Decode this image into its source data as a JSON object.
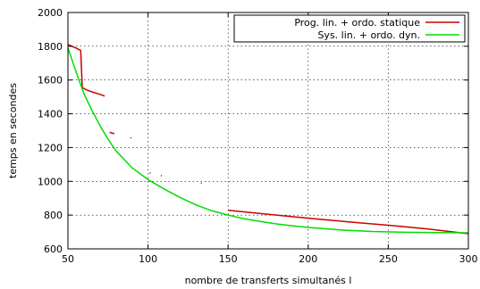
{
  "chart_data": {
    "type": "line",
    "xlabel": "nombre de transferts simultanés l",
    "ylabel": "temps en secondes",
    "xlim": [
      50,
      300
    ],
    "ylim": [
      600,
      2000
    ],
    "x_ticks": [
      50,
      100,
      150,
      200,
      250,
      300
    ],
    "y_ticks": [
      600,
      800,
      1000,
      1200,
      1400,
      1600,
      1800,
      2000
    ],
    "grid": true,
    "legend_position": "top-right",
    "series": [
      {
        "name": "Prog. lin. + ordo. statique",
        "color": "#cc0000",
        "segments": [
          [
            [
              50,
              1810
            ],
            [
              55,
              1790
            ],
            [
              58,
              1775
            ],
            [
              59,
              1545
            ]
          ],
          [
            [
              59,
              1555
            ],
            [
              62,
              1540
            ],
            [
              65,
              1530
            ],
            [
              70,
              1515
            ],
            [
              73,
              1505
            ]
          ],
          [
            [
              76,
              1290
            ],
            [
              79,
              1282
            ]
          ],
          [
            [
              89,
              1260
            ],
            [
              89.5,
              1256
            ]
          ],
          [
            [
              101,
              1050
            ],
            [
              101.5,
              1047
            ]
          ],
          [
            [
              108,
              1035
            ],
            [
              108.5,
              1032
            ]
          ],
          [
            [
              133,
              990
            ],
            [
              133.5,
              988
            ]
          ],
          [
            [
              150,
              828
            ],
            [
              175,
              805
            ],
            [
              200,
              782
            ],
            [
              225,
              760
            ],
            [
              250,
              740
            ],
            [
              275,
              718
            ],
            [
              300,
              690
            ]
          ]
        ]
      },
      {
        "name": "Sys. lin. + ordo. dyn.",
        "color": "#00dd00",
        "points": [
          [
            50,
            1790
          ],
          [
            55,
            1650
          ],
          [
            60,
            1520
          ],
          [
            65,
            1420
          ],
          [
            70,
            1330
          ],
          [
            75,
            1250
          ],
          [
            80,
            1180
          ],
          [
            90,
            1080
          ],
          [
            100,
            1010
          ],
          [
            110,
            955
          ],
          [
            120,
            905
          ],
          [
            130,
            860
          ],
          [
            140,
            825
          ],
          [
            150,
            800
          ],
          [
            160,
            778
          ],
          [
            170,
            762
          ],
          [
            180,
            748
          ],
          [
            190,
            737
          ],
          [
            200,
            727
          ],
          [
            220,
            712
          ],
          [
            240,
            703
          ],
          [
            260,
            698
          ],
          [
            280,
            696
          ],
          [
            300,
            695
          ]
        ]
      }
    ]
  }
}
